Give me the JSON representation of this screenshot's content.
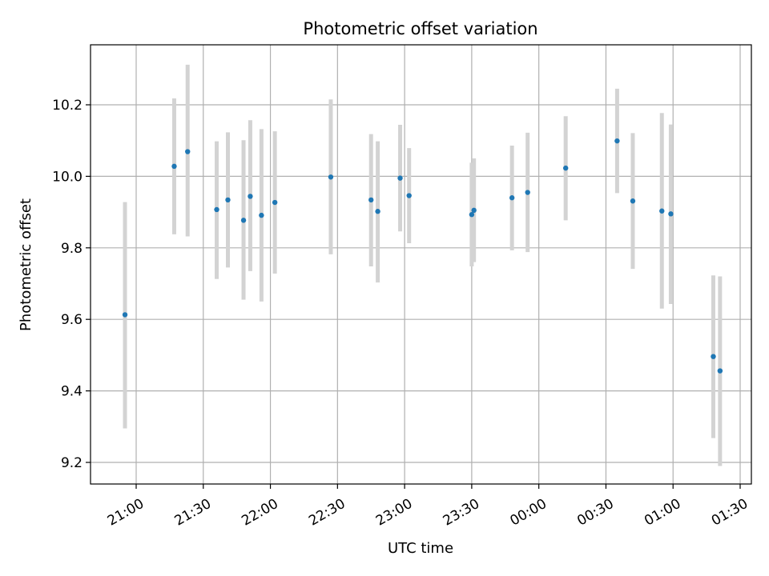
{
  "chart_data": {
    "type": "scatter",
    "title": "Photometric offset variation",
    "xlabel": "UTC time",
    "ylabel": "Photometric offset",
    "x_tick_labels": [
      "21:00",
      "21:30",
      "22:00",
      "22:30",
      "23:00",
      "23:30",
      "00:00",
      "00:30",
      "01:00",
      "01:30"
    ],
    "y_tick_labels": [
      "9.2",
      "9.4",
      "9.6",
      "9.8",
      "10.0",
      "10.2"
    ],
    "ylim": [
      9.14,
      10.36
    ],
    "grid": true,
    "legend": "none",
    "colors": {
      "point": "#1f77b4",
      "errorbar": "#d3d3d3",
      "grid": "#b0b0b0"
    },
    "series": [
      {
        "points": [
          {
            "x": "20:55",
            "y": 9.613,
            "y_low": 9.295,
            "y_high": 9.928
          },
          {
            "x": "21:17",
            "y": 10.028,
            "y_low": 9.838,
            "y_high": 10.218
          },
          {
            "x": "21:23",
            "y": 10.069,
            "y_low": 9.832,
            "y_high": 10.312
          },
          {
            "x": "21:36",
            "y": 9.907,
            "y_low": 9.713,
            "y_high": 10.098
          },
          {
            "x": "21:41",
            "y": 9.934,
            "y_low": 9.745,
            "y_high": 10.123
          },
          {
            "x": "21:48",
            "y": 9.877,
            "y_low": 9.655,
            "y_high": 10.101
          },
          {
            "x": "21:51",
            "y": 9.944,
            "y_low": 9.735,
            "y_high": 10.157
          },
          {
            "x": "21:56",
            "y": 9.891,
            "y_low": 9.65,
            "y_high": 10.132
          },
          {
            "x": "22:02",
            "y": 9.927,
            "y_low": 9.728,
            "y_high": 10.126
          },
          {
            "x": "22:27",
            "y": 9.998,
            "y_low": 9.782,
            "y_high": 10.215
          },
          {
            "x": "22:45",
            "y": 9.934,
            "y_low": 9.748,
            "y_high": 10.118
          },
          {
            "x": "22:48",
            "y": 9.902,
            "y_low": 9.703,
            "y_high": 10.098
          },
          {
            "x": "22:58",
            "y": 9.995,
            "y_low": 9.846,
            "y_high": 10.144
          },
          {
            "x": "23:02",
            "y": 9.946,
            "y_low": 9.813,
            "y_high": 10.079
          },
          {
            "x": "23:30",
            "y": 9.893,
            "y_low": 9.748,
            "y_high": 10.038
          },
          {
            "x": "23:31",
            "y": 9.905,
            "y_low": 9.76,
            "y_high": 10.05
          },
          {
            "x": "23:48",
            "y": 9.94,
            "y_low": 9.793,
            "y_high": 10.086
          },
          {
            "x": "23:55",
            "y": 9.955,
            "y_low": 9.788,
            "y_high": 10.122
          },
          {
            "x": "00:12",
            "y": 10.023,
            "y_low": 9.877,
            "y_high": 10.168
          },
          {
            "x": "00:35",
            "y": 10.099,
            "y_low": 9.953,
            "y_high": 10.245
          },
          {
            "x": "00:42",
            "y": 9.931,
            "y_low": 9.741,
            "y_high": 10.121
          },
          {
            "x": "00:55",
            "y": 9.903,
            "y_low": 9.63,
            "y_high": 10.177
          },
          {
            "x": "00:59",
            "y": 9.895,
            "y_low": 9.643,
            "y_high": 10.145
          },
          {
            "x": "01:18",
            "y": 9.496,
            "y_low": 9.268,
            "y_high": 9.723
          },
          {
            "x": "01:21",
            "y": 9.456,
            "y_low": 9.19,
            "y_high": 9.72
          }
        ]
      }
    ]
  }
}
